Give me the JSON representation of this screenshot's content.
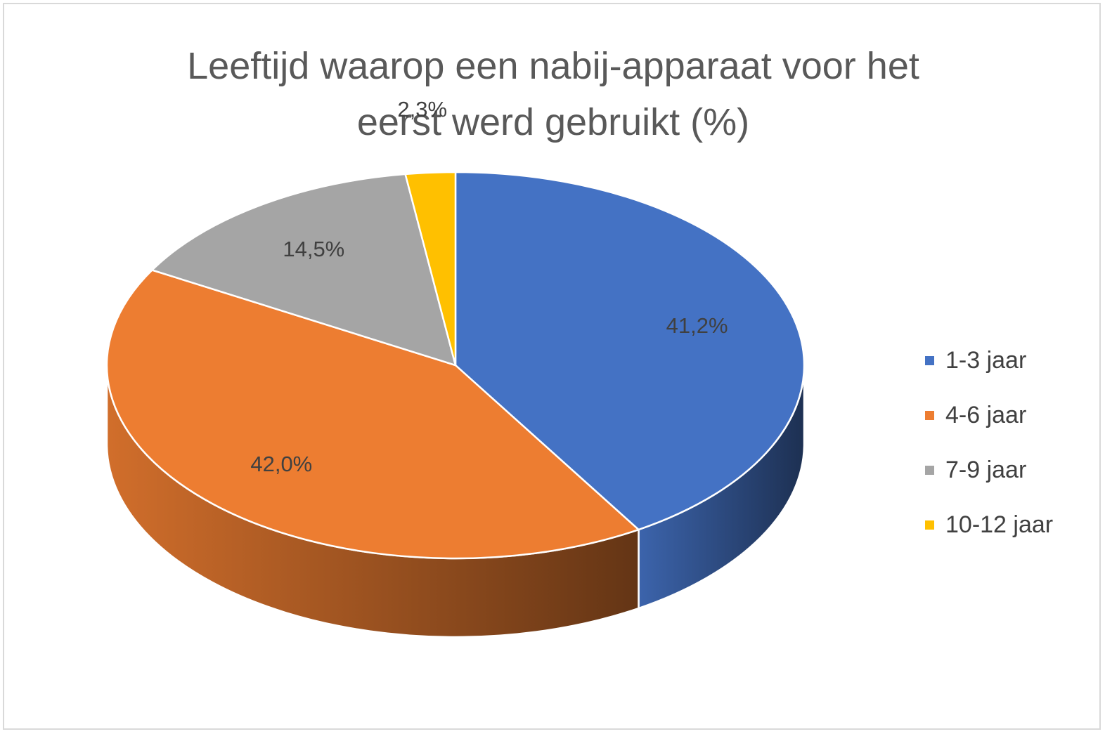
{
  "chart_data": {
    "type": "pie",
    "title_lines": [
      "Leeftijd waarop een nabij-apparaat voor het",
      "eerst werd gebruikt (%)"
    ],
    "categories": [
      "1-3 jaar",
      "4-6 jaar",
      "7-9 jaar",
      "10-12 jaar"
    ],
    "values": [
      41.2,
      42.0,
      14.5,
      2.3
    ],
    "data_labels": [
      "41,2%",
      "42,0%",
      "14,5%",
      "2,3%"
    ],
    "colors": [
      "#4472c4",
      "#ed7d31",
      "#a5a5a5",
      "#ffc000"
    ],
    "legend_position": "right",
    "style": "3d"
  }
}
